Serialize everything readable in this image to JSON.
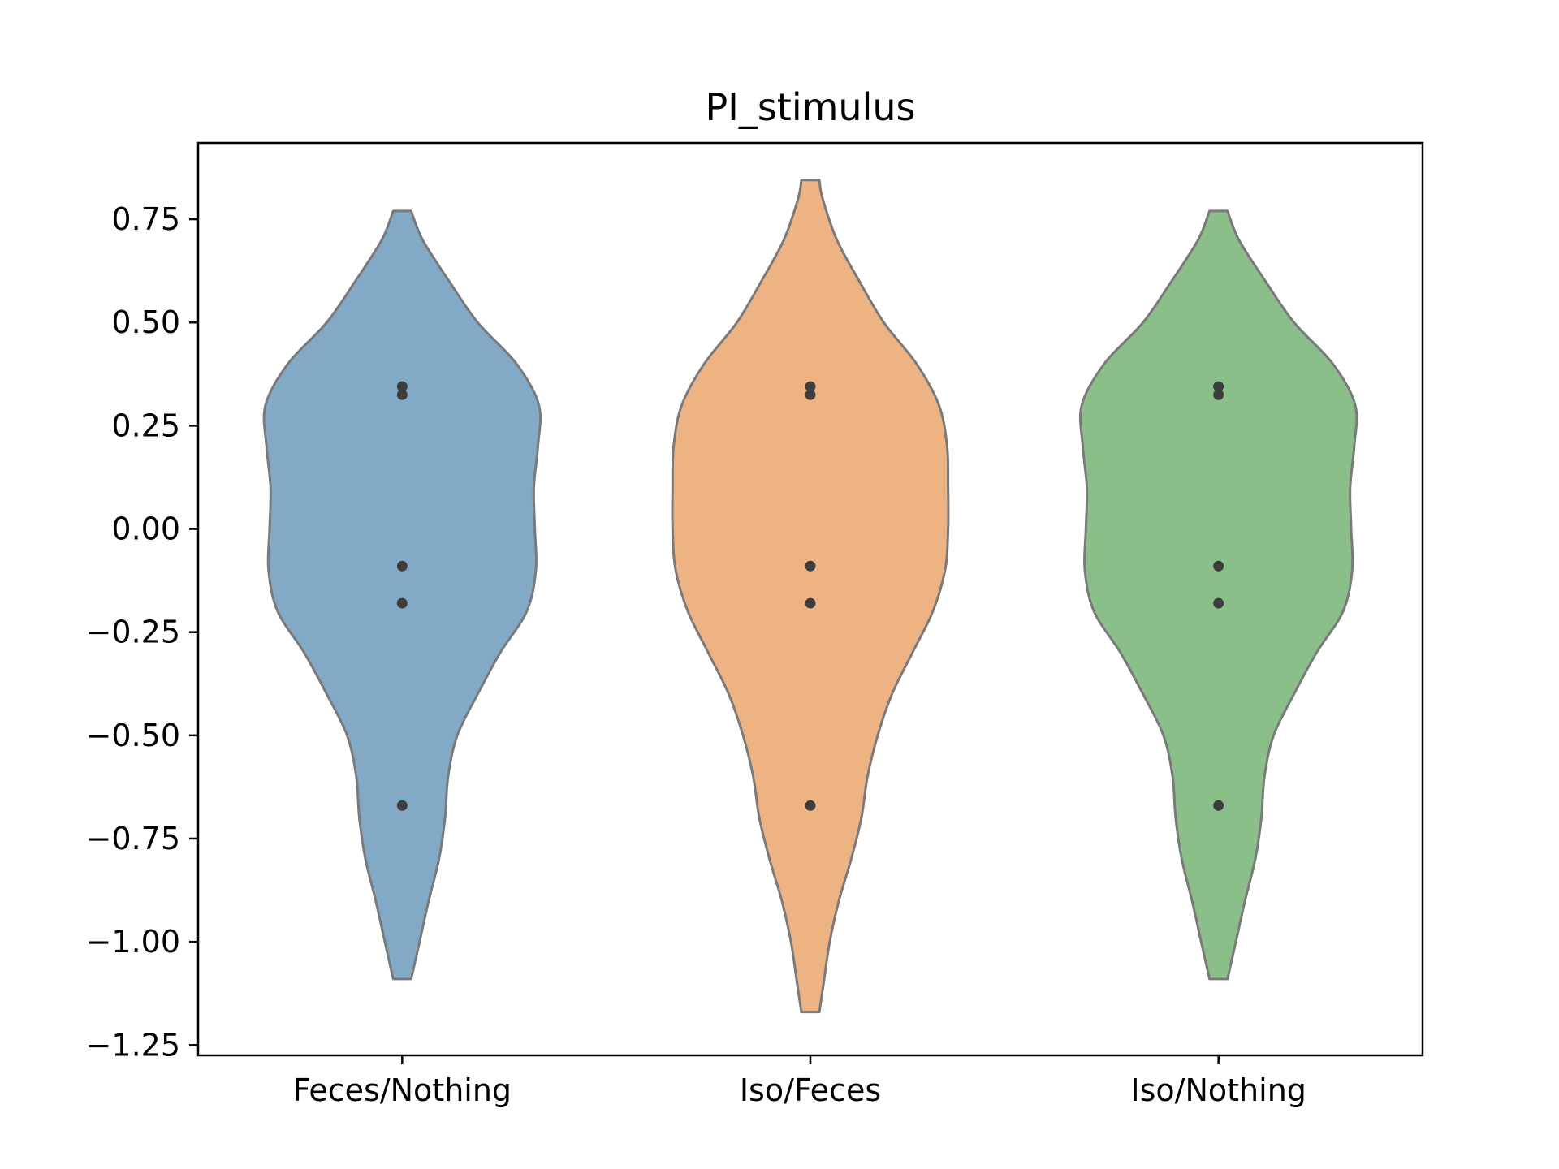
{
  "chart_data": {
    "type": "violin",
    "title": "PI_stimulus",
    "xlabel": "",
    "ylabel": "",
    "categories": [
      "Feces/Nothing",
      "Iso/Feces",
      "Iso/Nothing"
    ],
    "ylim": [
      -1.275,
      0.935
    ],
    "yticks": [
      0.75,
      0.5,
      0.25,
      0.0,
      -0.25,
      -0.5,
      -0.75,
      -1.0,
      -1.25
    ],
    "ytick_labels": [
      "0.75",
      "0.50",
      "0.25",
      "0.00",
      "−0.25",
      "−0.50",
      "−0.75",
      "−1.00",
      "−1.25"
    ],
    "grid": false,
    "series": [
      {
        "category": "Feces/Nothing",
        "color": "#82a9c6",
        "points": [
          0.345,
          0.325,
          -0.09,
          -0.18,
          -0.67
        ],
        "range": [
          -1.09,
          0.77
        ],
        "density": [
          [
            0.77,
            0.044
          ],
          [
            0.7,
            0.1
          ],
          [
            0.6,
            0.23
          ],
          [
            0.5,
            0.37
          ],
          [
            0.4,
            0.56
          ],
          [
            0.3,
            0.67
          ],
          [
            0.2,
            0.665
          ],
          [
            0.1,
            0.645
          ],
          [
            0.0,
            0.65
          ],
          [
            -0.1,
            0.655
          ],
          [
            -0.2,
            0.61
          ],
          [
            -0.3,
            0.48
          ],
          [
            -0.4,
            0.37
          ],
          [
            -0.5,
            0.27
          ],
          [
            -0.6,
            0.225
          ],
          [
            -0.7,
            0.21
          ],
          [
            -0.8,
            0.18
          ],
          [
            -0.9,
            0.13
          ],
          [
            -1.0,
            0.085
          ],
          [
            -1.09,
            0.044
          ]
        ]
      },
      {
        "category": "Iso/Feces",
        "color": "#eeb382",
        "points": [
          0.345,
          0.325,
          -0.09,
          -0.18,
          -0.67
        ],
        "range": [
          -1.17,
          0.845
        ],
        "density": [
          [
            0.845,
            0.044
          ],
          [
            0.8,
            0.06
          ],
          [
            0.7,
            0.13
          ],
          [
            0.6,
            0.24
          ],
          [
            0.5,
            0.36
          ],
          [
            0.4,
            0.52
          ],
          [
            0.3,
            0.63
          ],
          [
            0.2,
            0.67
          ],
          [
            0.1,
            0.675
          ],
          [
            0.0,
            0.675
          ],
          [
            -0.1,
            0.66
          ],
          [
            -0.2,
            0.6
          ],
          [
            -0.3,
            0.5
          ],
          [
            -0.4,
            0.4
          ],
          [
            -0.5,
            0.33
          ],
          [
            -0.6,
            0.28
          ],
          [
            -0.7,
            0.25
          ],
          [
            -0.8,
            0.2
          ],
          [
            -0.9,
            0.14
          ],
          [
            -1.0,
            0.095
          ],
          [
            -1.1,
            0.065
          ],
          [
            -1.17,
            0.044
          ]
        ]
      },
      {
        "category": "Iso/Nothing",
        "color": "#8abf89",
        "points": [
          0.345,
          0.325,
          -0.09,
          -0.18,
          -0.67
        ],
        "range": [
          -1.09,
          0.77
        ],
        "density": [
          [
            0.77,
            0.044
          ],
          [
            0.7,
            0.1
          ],
          [
            0.6,
            0.23
          ],
          [
            0.5,
            0.37
          ],
          [
            0.4,
            0.56
          ],
          [
            0.3,
            0.67
          ],
          [
            0.2,
            0.665
          ],
          [
            0.1,
            0.645
          ],
          [
            0.0,
            0.65
          ],
          [
            -0.1,
            0.655
          ],
          [
            -0.2,
            0.61
          ],
          [
            -0.3,
            0.48
          ],
          [
            -0.4,
            0.37
          ],
          [
            -0.5,
            0.27
          ],
          [
            -0.6,
            0.225
          ],
          [
            -0.7,
            0.21
          ],
          [
            -0.8,
            0.18
          ],
          [
            -0.9,
            0.13
          ],
          [
            -1.0,
            0.085
          ],
          [
            -1.09,
            0.044
          ]
        ]
      }
    ],
    "colors": {
      "outline": "#7a7a7a",
      "point": "#3d3d3d",
      "axes": "#000000"
    }
  }
}
